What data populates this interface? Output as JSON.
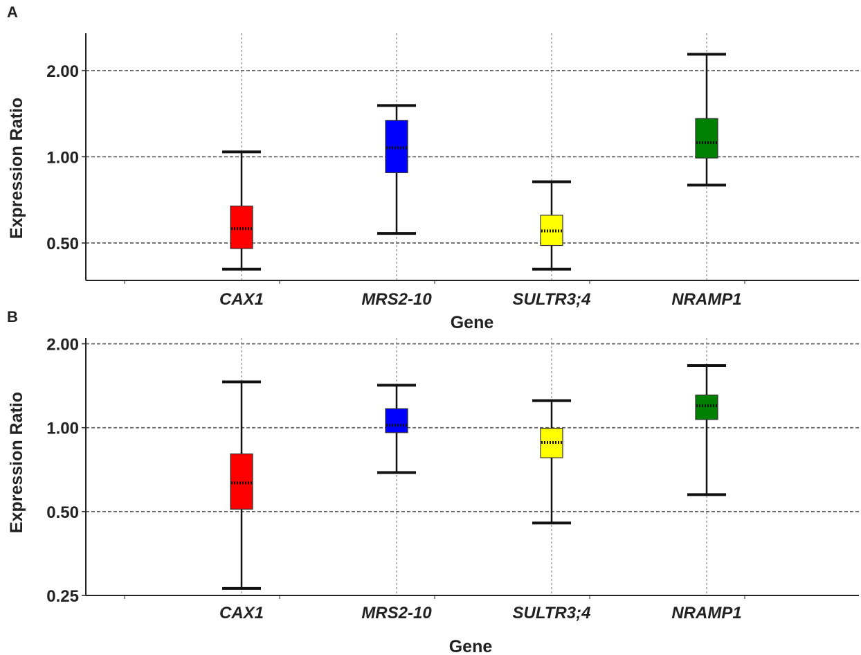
{
  "chart_data": [
    {
      "panel": "A",
      "type": "box",
      "xlabel": "Gene",
      "ylabel": "Expression Ratio",
      "y_scale": "log2",
      "ylim": [
        0.37,
        2.7
      ],
      "y_ticks": [
        0.5,
        1.0,
        2.0
      ],
      "y_tick_labels": [
        "0.50",
        "1.00",
        "2.00"
      ],
      "grid": true,
      "categories": [
        "CAX1",
        "MRS2-10",
        "SULTR3;4",
        "NRAMP1"
      ],
      "colors": [
        "#ff0000",
        "#0000ff",
        "#ffff00",
        "#008000"
      ],
      "boxes": [
        {
          "min": 0.405,
          "q1": 0.478,
          "median": 0.561,
          "q3": 0.673,
          "max": 1.04
        },
        {
          "min": 0.54,
          "q1": 0.88,
          "median": 1.075,
          "q3": 1.34,
          "max": 1.51
        },
        {
          "min": 0.405,
          "q1": 0.49,
          "median": 0.551,
          "q3": 0.625,
          "max": 0.818
        },
        {
          "min": 0.796,
          "q1": 0.99,
          "median": 1.12,
          "q3": 1.36,
          "max": 2.28
        }
      ]
    },
    {
      "panel": "B",
      "type": "box",
      "xlabel": "Gene",
      "ylabel": "Expression Ratio",
      "y_scale": "log2",
      "ylim": [
        0.25,
        2.1
      ],
      "y_ticks": [
        0.25,
        0.5,
        1.0,
        2.0
      ],
      "y_tick_labels": [
        "0.25",
        "0.50",
        "1.00",
        "2.00"
      ],
      "grid": true,
      "categories": [
        "CAX1",
        "MRS2-10",
        "SULTR3;4",
        "NRAMP1"
      ],
      "colors": [
        "#ff0000",
        "#0000ff",
        "#ffff00",
        "#008000"
      ],
      "boxes": [
        {
          "min": 0.265,
          "q1": 0.51,
          "median": 0.634,
          "q3": 0.805,
          "max": 1.46
        },
        {
          "min": 0.69,
          "q1": 0.96,
          "median": 1.02,
          "q3": 1.17,
          "max": 1.42
        },
        {
          "min": 0.455,
          "q1": 0.78,
          "median": 0.885,
          "q3": 0.995,
          "max": 1.25
        },
        {
          "min": 0.575,
          "q1": 1.07,
          "median": 1.2,
          "q3": 1.31,
          "max": 1.67
        }
      ]
    }
  ]
}
